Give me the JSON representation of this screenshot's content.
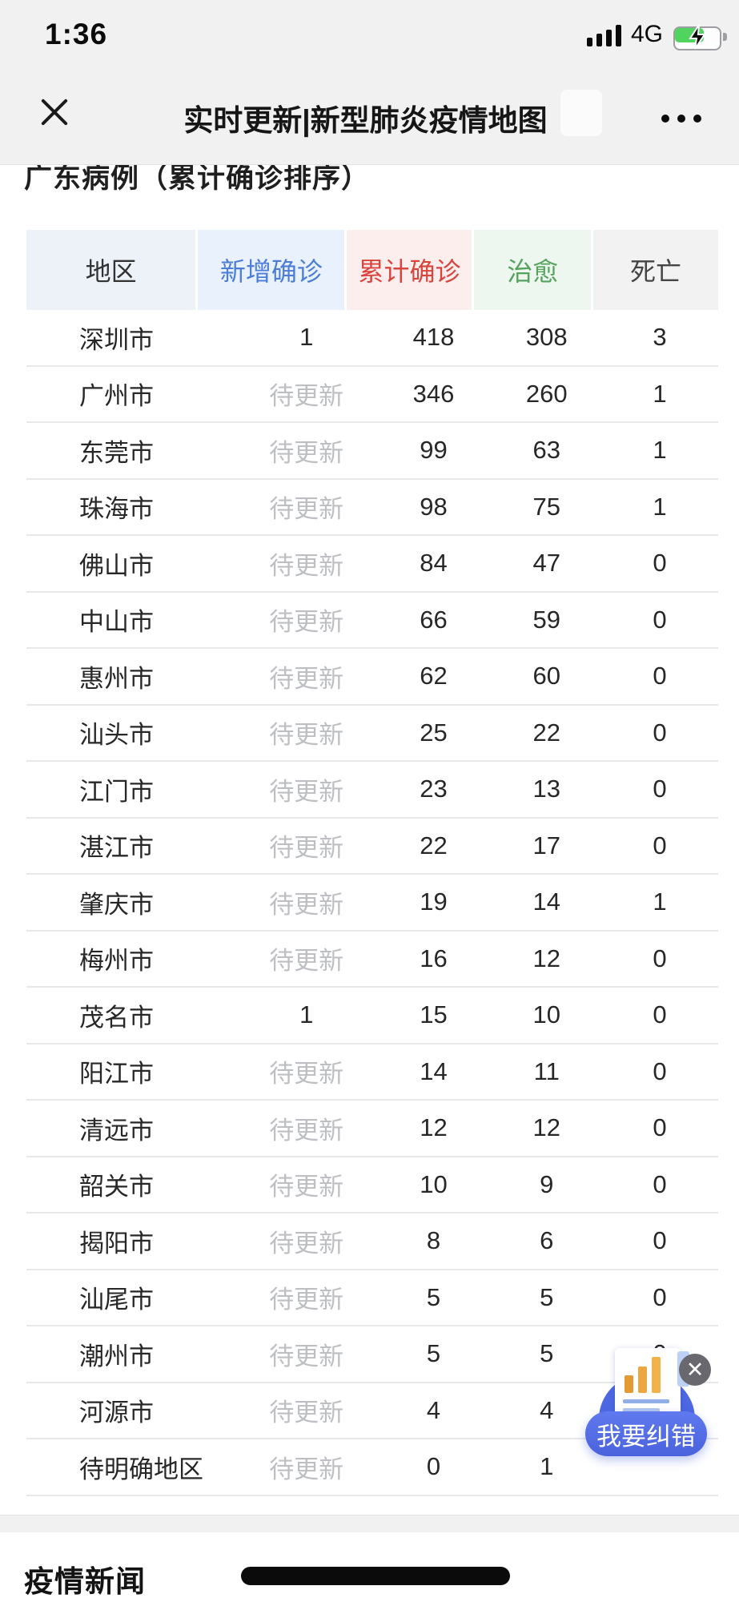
{
  "status_bar": {
    "time": "1:36",
    "network": "4G",
    "battery_charging": true
  },
  "nav_bar": {
    "title": "实时更新|新型肺炎疫情地图"
  },
  "section": {
    "heading": "广东病例（累计确诊排序）"
  },
  "table": {
    "pending_text": "待更新",
    "headers": [
      {
        "key": "region",
        "label": "地区",
        "color": "#333333",
        "bg": "#edf1f8"
      },
      {
        "key": "new-confirmed",
        "label": "新增确诊",
        "color": "#4c7dd8",
        "bg": "#e9f1fc"
      },
      {
        "key": "cumulative-confirmed",
        "label": "累计确诊",
        "color": "#d9443d",
        "bg": "#fdeeee"
      },
      {
        "key": "cured",
        "label": "治愈",
        "color": "#55a35d",
        "bg": "#edf6ef"
      },
      {
        "key": "deaths",
        "label": "死亡",
        "color": "#454545",
        "bg": "#f2f2f3"
      }
    ],
    "rows": [
      [
        "深圳市",
        "1",
        "418",
        "308",
        "3"
      ],
      [
        "广州市",
        "待更新",
        "346",
        "260",
        "1"
      ],
      [
        "东莞市",
        "待更新",
        "99",
        "63",
        "1"
      ],
      [
        "珠海市",
        "待更新",
        "98",
        "75",
        "1"
      ],
      [
        "佛山市",
        "待更新",
        "84",
        "47",
        "0"
      ],
      [
        "中山市",
        "待更新",
        "66",
        "59",
        "0"
      ],
      [
        "惠州市",
        "待更新",
        "62",
        "60",
        "0"
      ],
      [
        "汕头市",
        "待更新",
        "25",
        "22",
        "0"
      ],
      [
        "江门市",
        "待更新",
        "23",
        "13",
        "0"
      ],
      [
        "湛江市",
        "待更新",
        "22",
        "17",
        "0"
      ],
      [
        "肇庆市",
        "待更新",
        "19",
        "14",
        "1"
      ],
      [
        "梅州市",
        "待更新",
        "16",
        "12",
        "0"
      ],
      [
        "茂名市",
        "1",
        "15",
        "10",
        "0"
      ],
      [
        "阳江市",
        "待更新",
        "14",
        "11",
        "0"
      ],
      [
        "清远市",
        "待更新",
        "12",
        "12",
        "0"
      ],
      [
        "韶关市",
        "待更新",
        "10",
        "9",
        "0"
      ],
      [
        "揭阳市",
        "待更新",
        "8",
        "6",
        "0"
      ],
      [
        "汕尾市",
        "待更新",
        "5",
        "5",
        "0"
      ],
      [
        "潮州市",
        "待更新",
        "5",
        "5",
        "0"
      ],
      [
        "河源市",
        "待更新",
        "4",
        "4",
        ""
      ],
      [
        "待明确地区",
        "待更新",
        "0",
        "1",
        ""
      ]
    ]
  },
  "correction_widget": {
    "label": "我要纠错",
    "close_glyph": "✕"
  },
  "news": {
    "heading": "疫情新闻"
  },
  "icons": {
    "nav_close": "close-icon",
    "nav_more": "more-dots-icon",
    "signal": "cellular-signal-icon",
    "battery": "battery-charging-icon",
    "widget_icon": "chart-document-icon"
  },
  "colors": {
    "topbar_bg": "#f1f1f2",
    "accent_blue": "#4c7dd8",
    "accent_red": "#d9443d",
    "accent_green": "#55a35d",
    "widget_blue": "#4d68e2",
    "battery_green": "#50d35f",
    "pending_gray": "#bdbfc3"
  }
}
